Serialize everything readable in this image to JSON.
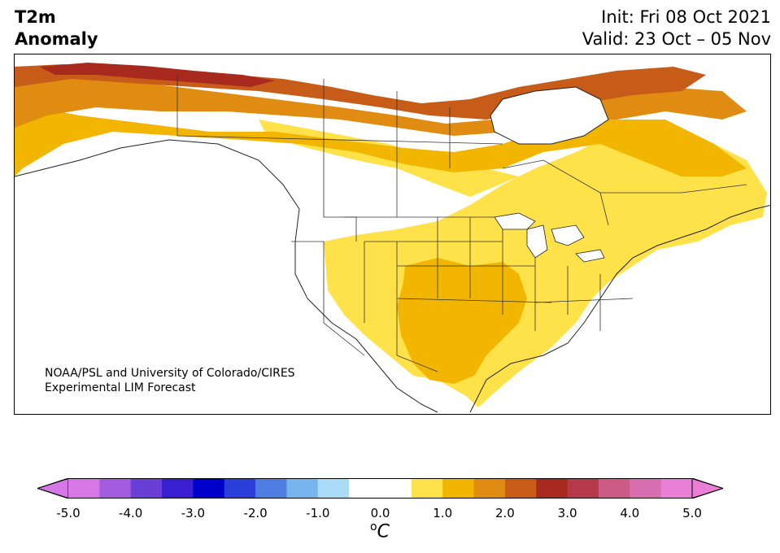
{
  "title": {
    "variable": "T2m",
    "kind": "Anomaly",
    "init": "Init: Fri 08 Oct 2021",
    "valid": "Valid: 23 Oct – 05 Nov"
  },
  "credit": {
    "line1": "NOAA/PSL and University of Colorado/CIRES",
    "line2": "Experimental LIM Forecast"
  },
  "colorbar": {
    "unit_symbol": "o",
    "unit_letter": "C",
    "min_color": "#d677e6",
    "max_color": "#e97ed6",
    "bins": [
      "#d677e6",
      "#a35ce0",
      "#6a3fd8",
      "#3a1fd0",
      "#0000cc",
      "#2c3fd8",
      "#4e7ee0",
      "#78b4ee",
      "#aadcf8",
      "#ffffff",
      "#ffffff",
      "#ffe14a",
      "#f2b600",
      "#e08c12",
      "#c75b18",
      "#a82a1f",
      "#b83a4a",
      "#cc5c86",
      "#d86db0",
      "#e97ed6"
    ],
    "ticks": [
      "-5.0",
      "-4.0",
      "-3.0",
      "-2.0",
      "-1.0",
      "0.0",
      "1.0",
      "2.0",
      "3.0",
      "4.0",
      "5.0"
    ]
  }
}
